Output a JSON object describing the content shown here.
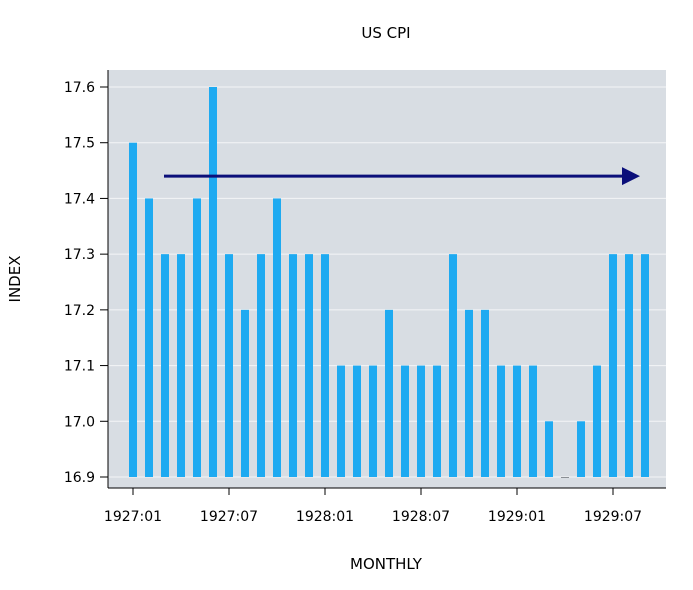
{
  "chart_data": {
    "type": "bar",
    "title": "US CPI",
    "xlabel": "MONTHLY",
    "ylabel": "INDEX",
    "ylim": [
      16.9,
      17.6
    ],
    "yticks": [
      "16.9",
      "17.0",
      "17.1",
      "17.2",
      "17.3",
      "17.4",
      "17.5",
      "17.6"
    ],
    "xticks": [
      "1927:01",
      "1927:07",
      "1928:01",
      "1928:07",
      "1929:01",
      "1929:07"
    ],
    "categories": [
      "1927:01",
      "1927:02",
      "1927:03",
      "1927:04",
      "1927:05",
      "1927:06",
      "1927:07",
      "1927:08",
      "1927:09",
      "1927:10",
      "1927:11",
      "1927:12",
      "1928:01",
      "1928:02",
      "1928:03",
      "1928:04",
      "1928:05",
      "1928:06",
      "1928:07",
      "1928:08",
      "1928:09",
      "1928:10",
      "1928:11",
      "1928:12",
      "1929:01",
      "1929:02",
      "1929:03",
      "1929:04",
      "1929:05",
      "1929:06",
      "1929:07",
      "1929:08",
      "1929:09"
    ],
    "values": [
      17.5,
      17.4,
      17.3,
      17.3,
      17.4,
      17.6,
      17.3,
      17.2,
      17.3,
      17.4,
      17.3,
      17.3,
      17.3,
      17.1,
      17.1,
      17.1,
      17.2,
      17.1,
      17.1,
      17.1,
      17.3,
      17.2,
      17.2,
      17.1,
      17.1,
      17.1,
      17.0,
      16.9,
      17.0,
      17.1,
      17.3,
      17.3,
      17.3
    ],
    "grid": true,
    "annotation": {
      "type": "arrow",
      "from": "1927:03",
      "to": "1929:09",
      "y": 17.44
    },
    "colors": {
      "bar": "#1eaaf1",
      "plot_bg": "#d8dde3",
      "grid": "#f4f5f7",
      "arrow": "#0b0f7a"
    }
  }
}
